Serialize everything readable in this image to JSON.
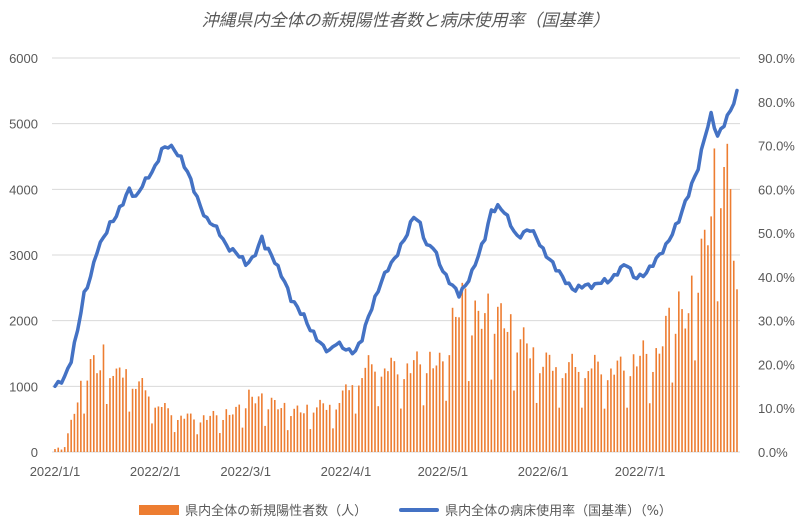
{
  "chart_data": {
    "type": "bar",
    "title": "沖縄県内全体の新規陽性者数と病床使用率（国基準）",
    "x_tick_labels": [
      "2022/1/1",
      "2022/2/1",
      "2022/3/1",
      "2022/4/1",
      "2022/5/1",
      "2022/6/1",
      "2022/7/1"
    ],
    "y_left": {
      "ticks": [
        "0",
        "1000",
        "2000",
        "3000",
        "4000",
        "5000",
        "6000"
      ],
      "ylim": [
        0,
        6000
      ]
    },
    "y_right": {
      "ticks": [
        "0.0%",
        "10.0%",
        "20.0%",
        "30.0%",
        "40.0%",
        "50.0%",
        "60.0%",
        "70.0%",
        "80.0%",
        "90.0%"
      ],
      "ylim": [
        0,
        90
      ]
    },
    "grid": true,
    "legend_position": "bottom",
    "series": [
      {
        "name": "県内全体の新規陽性者数（人）",
        "kind": "bar",
        "axis": "left",
        "color": "#ED7D31",
        "anchors": [
          [
            0,
            50
          ],
          [
            3,
            100
          ],
          [
            5,
            500
          ],
          [
            7,
            900
          ],
          [
            9,
            1300
          ],
          [
            11,
            1600
          ],
          [
            13,
            1350
          ],
          [
            15,
            1750
          ],
          [
            17,
            1500
          ],
          [
            19,
            1300
          ],
          [
            22,
            1450
          ],
          [
            25,
            1200
          ],
          [
            28,
            1100
          ],
          [
            31,
            900
          ],
          [
            34,
            750
          ],
          [
            38,
            650
          ],
          [
            42,
            600
          ],
          [
            46,
            600
          ],
          [
            52,
            650
          ],
          [
            56,
            700
          ],
          [
            60,
            950
          ],
          [
            64,
            900
          ],
          [
            67,
            850
          ],
          [
            71,
            750
          ],
          [
            76,
            700
          ],
          [
            80,
            800
          ],
          [
            86,
            800
          ],
          [
            90,
            1050
          ],
          [
            93,
            1300
          ],
          [
            96,
            1450
          ],
          [
            100,
            1550
          ],
          [
            105,
            1450
          ],
          [
            110,
            1500
          ],
          [
            115,
            1600
          ],
          [
            120,
            1500
          ],
          [
            123,
            2200
          ],
          [
            126,
            2700
          ],
          [
            128,
            2400
          ],
          [
            131,
            2300
          ],
          [
            135,
            2450
          ],
          [
            140,
            2200
          ],
          [
            145,
            1900
          ],
          [
            150,
            1600
          ],
          [
            155,
            1500
          ],
          [
            160,
            1500
          ],
          [
            166,
            1500
          ],
          [
            172,
            1450
          ],
          [
            177,
            1500
          ],
          [
            182,
            1700
          ],
          [
            186,
            1600
          ],
          [
            190,
            2300
          ],
          [
            193,
            2450
          ],
          [
            196,
            2300
          ],
          [
            198,
            3100
          ],
          [
            201,
            3500
          ],
          [
            203,
            4200
          ],
          [
            205,
            5100
          ],
          [
            207,
            4800
          ],
          [
            209,
            4600
          ],
          [
            211,
            2600
          ]
        ],
        "weekly_low_factor": 0.45
      },
      {
        "name": "県内全体の病床使用率（国基準）（%）",
        "kind": "line",
        "axis": "right",
        "color": "#4472C4",
        "anchors": [
          [
            0,
            15
          ],
          [
            3,
            17
          ],
          [
            5,
            21
          ],
          [
            7,
            28
          ],
          [
            9,
            36
          ],
          [
            11,
            40
          ],
          [
            13,
            46
          ],
          [
            15,
            49
          ],
          [
            17,
            52
          ],
          [
            19,
            54
          ],
          [
            21,
            57
          ],
          [
            23,
            60
          ],
          [
            25,
            58
          ],
          [
            27,
            61
          ],
          [
            29,
            63
          ],
          [
            31,
            65
          ],
          [
            33,
            69
          ],
          [
            35,
            70
          ],
          [
            37,
            69
          ],
          [
            39,
            67
          ],
          [
            41,
            64
          ],
          [
            43,
            60
          ],
          [
            45,
            56
          ],
          [
            47,
            53
          ],
          [
            49,
            52
          ],
          [
            51,
            50
          ],
          [
            53,
            47
          ],
          [
            55,
            46
          ],
          [
            57,
            45
          ],
          [
            59,
            43
          ],
          [
            61,
            44
          ],
          [
            63,
            47
          ],
          [
            64,
            49
          ],
          [
            65,
            47
          ],
          [
            67,
            45
          ],
          [
            69,
            42
          ],
          [
            71,
            39
          ],
          [
            73,
            35
          ],
          [
            75,
            33
          ],
          [
            77,
            31
          ],
          [
            79,
            28
          ],
          [
            81,
            26
          ],
          [
            83,
            24
          ],
          [
            85,
            23
          ],
          [
            87,
            25
          ],
          [
            89,
            24
          ],
          [
            91,
            23
          ],
          [
            93,
            23
          ],
          [
            95,
            26
          ],
          [
            97,
            31
          ],
          [
            99,
            35
          ],
          [
            101,
            39
          ],
          [
            103,
            42
          ],
          [
            105,
            44
          ],
          [
            107,
            47
          ],
          [
            109,
            50
          ],
          [
            111,
            54
          ],
          [
            113,
            52
          ],
          [
            115,
            47
          ],
          [
            117,
            47
          ],
          [
            119,
            43
          ],
          [
            121,
            40
          ],
          [
            123,
            38
          ],
          [
            125,
            36
          ],
          [
            127,
            38
          ],
          [
            129,
            41
          ],
          [
            131,
            45
          ],
          [
            133,
            49
          ],
          [
            135,
            55
          ],
          [
            137,
            56
          ],
          [
            139,
            55
          ],
          [
            141,
            52
          ],
          [
            143,
            49
          ],
          [
            145,
            50
          ],
          [
            147,
            51
          ],
          [
            149,
            49
          ],
          [
            151,
            46
          ],
          [
            153,
            44
          ],
          [
            155,
            42
          ],
          [
            157,
            40
          ],
          [
            159,
            38
          ],
          [
            161,
            37
          ],
          [
            163,
            38
          ],
          [
            165,
            38
          ],
          [
            167,
            38
          ],
          [
            169,
            39
          ],
          [
            171,
            39
          ],
          [
            173,
            40
          ],
          [
            175,
            42
          ],
          [
            177,
            43
          ],
          [
            179,
            40
          ],
          [
            181,
            40
          ],
          [
            183,
            41
          ],
          [
            185,
            43
          ],
          [
            187,
            45
          ],
          [
            189,
            47
          ],
          [
            191,
            50
          ],
          [
            193,
            53
          ],
          [
            195,
            57
          ],
          [
            197,
            61
          ],
          [
            199,
            65
          ],
          [
            201,
            72
          ],
          [
            203,
            77
          ],
          [
            205,
            72
          ],
          [
            207,
            75
          ],
          [
            209,
            78
          ],
          [
            211,
            82
          ]
        ]
      }
    ]
  }
}
